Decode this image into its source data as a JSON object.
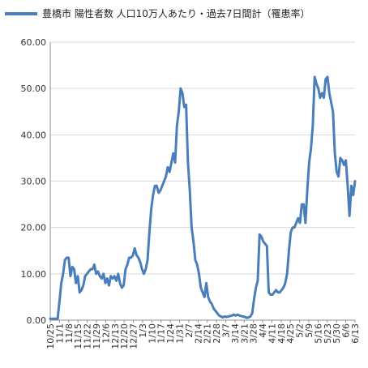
{
  "chart_data": {
    "type": "line",
    "legend": "top",
    "grid": true,
    "series": [
      {
        "name": "豊橋市 陽性者数 人口10万人あたり・過去7日間計（罹患率）",
        "color": "#4a7ebb",
        "values": [
          0.3,
          0.3,
          0.3,
          0.3,
          0.3,
          4.0,
          8.0,
          10.0,
          13.0,
          13.5,
          13.5,
          9.5,
          11.5,
          11.0,
          8.0,
          9.5,
          6.0,
          6.5,
          7.5,
          9.5,
          10.0,
          10.5,
          11.0,
          11.0,
          12.0,
          10.0,
          10.5,
          9.5,
          9.0,
          10.0,
          8.0,
          9.0,
          7.5,
          9.5,
          9.0,
          9.5,
          8.5,
          10.0,
          8.0,
          7.0,
          7.5,
          11.0,
          12.0,
          13.5,
          13.5,
          14.0,
          15.5,
          14.0,
          13.5,
          12.5,
          11.0,
          10.0,
          11.0,
          13.0,
          19.0,
          24.0,
          27.0,
          29.0,
          29.0,
          27.5,
          28.0,
          29.0,
          30.0,
          31.0,
          33.0,
          32.0,
          34.0,
          36.0,
          34.0,
          42.0,
          45.0,
          50.0,
          49.0,
          46.0,
          46.5,
          34.0,
          28.0,
          20.0,
          17.0,
          13.0,
          12.0,
          10.0,
          7.0,
          6.0,
          5.0,
          8.0,
          5.0,
          4.0,
          3.5,
          2.5,
          2.0,
          1.5,
          1.0,
          0.8,
          0.6,
          0.8,
          0.7,
          0.8,
          0.9,
          1.0,
          1.2,
          1.0,
          1.2,
          1.0,
          0.9,
          0.8,
          0.7,
          0.5,
          0.6,
          0.8,
          1.5,
          4.5,
          7.0,
          8.5,
          18.5,
          18.0,
          17.0,
          16.5,
          16.0,
          6.0,
          5.5,
          5.5,
          6.0,
          6.5,
          6.0,
          6.0,
          6.5,
          7.0,
          8.0,
          10.0,
          15.0,
          19.0,
          20.0,
          20.0,
          21.0,
          22.0,
          21.0,
          25.0,
          25.0,
          21.0,
          28.0,
          34.0,
          37.0,
          42.0,
          52.5,
          51.0,
          50.0,
          48.0,
          49.0,
          48.0,
          52.0,
          52.5,
          49.0,
          47.0,
          45.0,
          36.0,
          32.0,
          31.0,
          35.0,
          34.5,
          33.5,
          34.5,
          29.0,
          22.5,
          29.0,
          27.0,
          30.0
        ]
      }
    ],
    "x_tick_labels": [
      "10/25",
      "11/1",
      "11/8",
      "11/15",
      "11/22",
      "11/29",
      "12/6",
      "12/13",
      "12/20",
      "12/27",
      "1/3",
      "1/10",
      "1/17",
      "1/24",
      "1/31",
      "2/7",
      "2/14",
      "2/21",
      "2/28",
      "3/7",
      "3/14",
      "3/21",
      "3/28",
      "4/4",
      "4/11",
      "4/18",
      "4/25",
      "5/2",
      "5/9",
      "5/16",
      "5/23",
      "5/30",
      "6/6",
      "6/13"
    ],
    "y_tick_labels": [
      "0.00",
      "10.00",
      "20.00",
      "30.00",
      "40.00",
      "50.00",
      "60.00"
    ],
    "ylim": [
      0,
      60
    ],
    "y_step": 10
  }
}
